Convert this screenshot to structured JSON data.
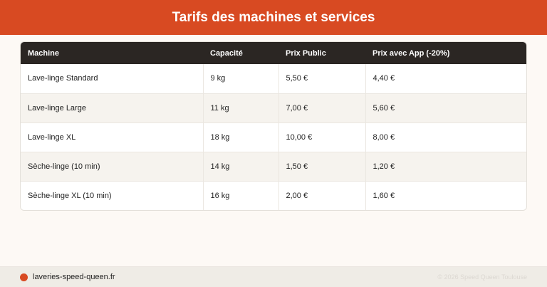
{
  "header": {
    "title": "Tarifs des machines et services"
  },
  "table": {
    "columns": [
      "Machine",
      "Capacité",
      "Prix Public",
      "Prix avec App (-20%)"
    ],
    "rows": [
      [
        "Lave-linge Standard",
        "9 kg",
        "5,50 €",
        "4,40 €"
      ],
      [
        "Lave-linge Large",
        "11 kg",
        "7,00 €",
        "5,60 €"
      ],
      [
        "Lave-linge XL",
        "18 kg",
        "10,00 €",
        "8,00 €"
      ],
      [
        "Sèche-linge (10 min)",
        "14 kg",
        "1,50 €",
        "1,20 €"
      ],
      [
        "Sèche-linge XL (10 min)",
        "16 kg",
        "2,00 €",
        "1,60 €"
      ]
    ]
  },
  "footer": {
    "site": "laveries-speed-queen.fr",
    "copyright": "© 2026 Speed Queen Toulouse"
  },
  "colors": {
    "accent": "#d84a22",
    "table_header": "#2b2623"
  }
}
